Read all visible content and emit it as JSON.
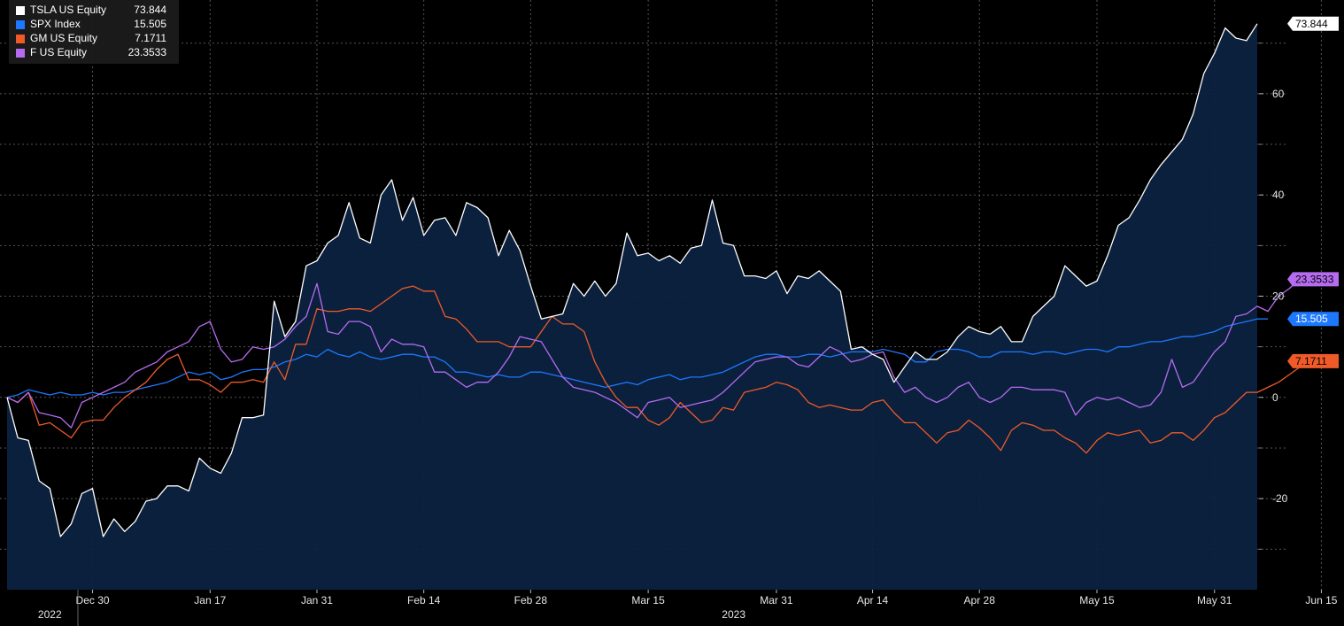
{
  "chart_data": {
    "type": "area",
    "title": "",
    "xlabel": "",
    "ylabel": "",
    "ylim": [
      -38,
      78
    ],
    "yticks": [
      -20,
      0,
      20,
      40,
      60
    ],
    "grid": true,
    "legend_position": "top-left",
    "x_tick_labels": [
      {
        "label": "Dec 30",
        "index": 8
      },
      {
        "label": "Jan 17",
        "index": 19
      },
      {
        "label": "Jan 31",
        "index": 29
      },
      {
        "label": "Feb 14",
        "index": 39
      },
      {
        "label": "Feb 28",
        "index": 49
      },
      {
        "label": "Mar 15",
        "index": 60
      },
      {
        "label": "Mar 31",
        "index": 72
      },
      {
        "label": "Apr 14",
        "index": 81
      },
      {
        "label": "Apr 28",
        "index": 91
      },
      {
        "label": "May 15",
        "index": 102
      },
      {
        "label": "May 31",
        "index": 113
      },
      {
        "label": "Jun 15",
        "index": 123
      }
    ],
    "year_labels": [
      {
        "label": "2022",
        "index": 4
      },
      {
        "label": "2023",
        "index": 68
      }
    ],
    "series": [
      {
        "name": "TSLA US Equity",
        "last": "73.844",
        "color": "#ffffff",
        "values": [
          0,
          -8,
          -8.5,
          -16.5,
          -18,
          -27.5,
          -25,
          -19,
          -18,
          -27.5,
          -24,
          -26.5,
          -24.5,
          -20.5,
          -20,
          -17.5,
          -17.5,
          -18.5,
          -12,
          -14,
          -15,
          -11,
          -4,
          -4,
          -3.5,
          19,
          12,
          15,
          26,
          27,
          30.5,
          32,
          38.5,
          31.5,
          30.5,
          40,
          43,
          35,
          39.5,
          32,
          35,
          35.5,
          32,
          38.5,
          37.5,
          35.5,
          28,
          33,
          29,
          22,
          15.5,
          16,
          16.5,
          22.5,
          20,
          23,
          20,
          22.5,
          32.5,
          28,
          28.5,
          27,
          28,
          26.5,
          29.5,
          30,
          39,
          30.5,
          30,
          24,
          24,
          23.5,
          25,
          20.5,
          24,
          23.5,
          25,
          23,
          21,
          9.5,
          10,
          8.5,
          7.5,
          3,
          6,
          9,
          7.5,
          7.5,
          9,
          12,
          14,
          13,
          12.5,
          14,
          11,
          11,
          16,
          18,
          20,
          26,
          24,
          22,
          23,
          28,
          34,
          35.5,
          39,
          43,
          46,
          48.5,
          51,
          56,
          64,
          68,
          73,
          71,
          70.5,
          73.844
        ]
      },
      {
        "name": "SPX Index",
        "last": "15.505",
        "color": "#1e78ff",
        "values": [
          0,
          0.5,
          1.5,
          1,
          0.5,
          1,
          0.5,
          0.5,
          1,
          0.5,
          1,
          1,
          1.5,
          2,
          2.5,
          3,
          4,
          5,
          4.5,
          5,
          3.5,
          4,
          5,
          5.5,
          5.5,
          6,
          7,
          7.5,
          8.5,
          8,
          9.5,
          8.5,
          8,
          9,
          8,
          7.5,
          8,
          8.5,
          8.5,
          8,
          8,
          7,
          5,
          5,
          4.5,
          4,
          4.5,
          4,
          4,
          5,
          5,
          4.5,
          4,
          3.5,
          3,
          2.5,
          2,
          2.5,
          3,
          2.5,
          3.5,
          4,
          4.5,
          3.5,
          4,
          4,
          4.5,
          5,
          6,
          7,
          8,
          8.5,
          8.5,
          8,
          8,
          8.5,
          8.5,
          8,
          8.5,
          9,
          9,
          9,
          9.5,
          9,
          8.5,
          7,
          7,
          9,
          9.5,
          9.5,
          9,
          8,
          8,
          9,
          9,
          9,
          8.5,
          9,
          9,
          8.5,
          9,
          9.5,
          9.5,
          9,
          10,
          10,
          10.5,
          11,
          11,
          11.5,
          12,
          12,
          12.5,
          13,
          14,
          14.5,
          15,
          15.5,
          15.505
        ]
      },
      {
        "name": "GM US Equity",
        "last": "7.1711",
        "color": "#f05a28",
        "values": [
          0,
          -1,
          1,
          -5.5,
          -5,
          -6.5,
          -8,
          -5,
          -4.5,
          -4.5,
          -2,
          0,
          1.5,
          3,
          5.5,
          7.5,
          8.5,
          3.5,
          3.5,
          2.5,
          1,
          3,
          3,
          3.5,
          3,
          7,
          3.5,
          10.5,
          10.5,
          17.5,
          17,
          17,
          17.5,
          17.5,
          17,
          18.5,
          20,
          21.5,
          22,
          21,
          21,
          16,
          15.5,
          13.5,
          11,
          11,
          11,
          10,
          10,
          10,
          13,
          16,
          14.5,
          14.5,
          13,
          7,
          3,
          0,
          -2,
          -2,
          -4.5,
          -5.5,
          -4,
          -1,
          -3,
          -5,
          -4.5,
          -2,
          -2.5,
          1,
          1.5,
          2,
          3,
          2.5,
          1.5,
          -1,
          -2,
          -1.5,
          -2,
          -2.5,
          -2.5,
          -1,
          -0.5,
          -3,
          -5,
          -5,
          -7,
          -9,
          -7,
          -6.5,
          -4.5,
          -6,
          -8,
          -10.5,
          -6.5,
          -5,
          -5.5,
          -6.5,
          -6.5,
          -8,
          -9,
          -11,
          -8.5,
          -7,
          -7.5,
          -7,
          -6.5,
          -9,
          -8.5,
          -7,
          -7,
          -8.5,
          -6.5,
          -4,
          -3,
          -1,
          1,
          1,
          2,
          3,
          4.5,
          6,
          7,
          7.5,
          7.1711
        ]
      },
      {
        "name": "F US Equity",
        "last": "23.3533",
        "color": "#b66cf0",
        "values": [
          0,
          -1,
          1,
          -3,
          -3.5,
          -4,
          -6,
          -1,
          0,
          1,
          2,
          3,
          5,
          6,
          7,
          9,
          10,
          11,
          14,
          15,
          9.5,
          7,
          7.5,
          10,
          9.5,
          10,
          11.5,
          14,
          16,
          22.5,
          13,
          12.5,
          15,
          15,
          14,
          9,
          11.5,
          10.5,
          10.5,
          10,
          5,
          5,
          3.5,
          2,
          3,
          3,
          5,
          8,
          12,
          11.5,
          11,
          7.5,
          4,
          2,
          1.5,
          1,
          0,
          -1,
          -2.5,
          -4,
          -1,
          -0.5,
          0,
          -2,
          -1.5,
          -1,
          -0.5,
          1,
          3,
          5,
          7,
          7.5,
          8,
          8,
          6.5,
          6,
          8,
          10,
          9,
          7,
          7.5,
          8.5,
          9,
          4,
          1,
          2,
          0,
          -1,
          0,
          2,
          3,
          0,
          -1,
          0,
          2,
          2,
          1.5,
          1.5,
          1.5,
          1,
          -3.5,
          -1,
          0,
          -0.5,
          0,
          -1,
          -2,
          -1.5,
          1,
          7.5,
          2,
          3,
          6,
          9,
          11,
          16,
          16.5,
          18,
          17,
          20,
          21.5,
          23.5,
          23.3533
        ]
      }
    ]
  }
}
